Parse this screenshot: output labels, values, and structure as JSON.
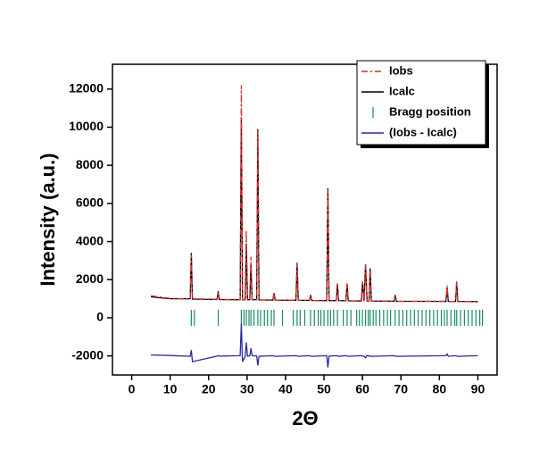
{
  "chart_data": {
    "type": "line",
    "x_label": "2Θ",
    "y_label": "Intensity (a.u.)",
    "xlim": [
      -5,
      95
    ],
    "ylim": [
      -3000,
      13300
    ],
    "xticks": [
      0,
      10,
      20,
      30,
      40,
      50,
      60,
      70,
      80,
      90
    ],
    "yticks": [
      -2000,
      0,
      2000,
      4000,
      6000,
      8000,
      10000,
      12000
    ],
    "legend": "upper right",
    "x": [
      5,
      10,
      15.2,
      15.5,
      15.8,
      22.2,
      22.5,
      22.8,
      28.2,
      28.5,
      28.8,
      29.5,
      29.8,
      30.1,
      30.7,
      31,
      31.3,
      32.5,
      32.8,
      33.1,
      36.7,
      37,
      37.3,
      42.7,
      43,
      43.3,
      46.2,
      46.5,
      46.8,
      50.7,
      51,
      51.3,
      53.2,
      53.5,
      53.8,
      55.7,
      56,
      56.3,
      59.7,
      60,
      60.4,
      60.8,
      61.2,
      61.7,
      62,
      62.3,
      68.2,
      68.5,
      68.8,
      81.7,
      82,
      82.3,
      84.2,
      84.5,
      84.8,
      90
    ],
    "series": [
      {
        "name": "Icalc",
        "color": "#000000",
        "dash": "solid",
        "values": [
          1100,
          1000,
          1000,
          3400,
          980,
          960,
          1400,
          960,
          950,
          10500,
          950,
          950,
          3900,
          950,
          950,
          2800,
          950,
          950,
          9900,
          940,
          930,
          1300,
          930,
          920,
          2900,
          920,
          910,
          1200,
          910,
          900,
          6800,
          900,
          900,
          1800,
          900,
          890,
          1800,
          890,
          880,
          1900,
          880,
          2800,
          880,
          880,
          2600,
          880,
          870,
          1200,
          870,
          860,
          1600,
          860,
          860,
          1900,
          860,
          850
        ]
      },
      {
        "name": "Iobs",
        "color": "#e02828",
        "dash": "dashdot",
        "values": [
          1150,
          1020,
          980,
          3300,
          1000,
          970,
          1400,
          950,
          960,
          12200,
          960,
          940,
          4600,
          960,
          940,
          3200,
          960,
          960,
          9800,
          930,
          940,
          1300,
          920,
          930,
          2900,
          910,
          920,
          1200,
          900,
          910,
          6700,
          890,
          910,
          1800,
          890,
          900,
          1800,
          880,
          890,
          1900,
          870,
          2800,
          890,
          870,
          2600,
          870,
          880,
          1200,
          860,
          870,
          1700,
          850,
          870,
          1900,
          850,
          860
        ]
      },
      {
        "name": "Bragg position",
        "color": "#1a8a6a",
        "marker": "tick",
        "x": [
          15.5,
          16.3,
          22.5,
          28.5,
          29.2,
          29.8,
          30.5,
          31,
          31.8,
          32.8,
          33.5,
          34.5,
          35.3,
          36.3,
          37,
          39.2,
          42,
          43,
          43.8,
          45,
          46.5,
          47.5,
          48.5,
          49.2,
          50,
          51,
          51.7,
          52.5,
          53.5,
          55,
          56,
          57,
          58.5,
          59.2,
          60,
          60.8,
          61.5,
          62,
          62.8,
          63.5,
          64.5,
          65.5,
          66.5,
          67.3,
          68.5,
          69.5,
          70.5,
          71.5,
          72.5,
          73.5,
          74.5,
          75.5,
          76.5,
          77.5,
          78.5,
          79.5,
          80.5,
          81.3,
          82,
          83,
          84,
          84.5,
          85.5,
          86.5,
          87.5,
          88.5,
          89.5,
          90.5,
          91.2
        ]
      },
      {
        "name": "(Iobs - Icalc)",
        "color": "#2a2a9c",
        "dash": "solid",
        "values": [
          -1950,
          -1980,
          -2020,
          -1700,
          -2300,
          -2010,
          -1990,
          -2010,
          -1990,
          -300,
          -2300,
          -2020,
          -1300,
          -2010,
          -2000,
          -1600,
          -1990,
          -2000,
          -2500,
          -2020,
          -1990,
          -2000,
          -2020,
          -1990,
          -2000,
          -2020,
          -1990,
          -2000,
          -2020,
          -1990,
          -2600,
          -2010,
          -1990,
          -2000,
          -2020,
          -1990,
          -2000,
          -2020,
          -1990,
          -2000,
          -2020,
          -2100,
          -1980,
          -2010,
          -2000,
          -2020,
          -1990,
          -2000,
          -2020,
          -1990,
          -1900,
          -2020,
          -1990,
          -2000,
          -2020,
          -1990
        ]
      }
    ]
  }
}
